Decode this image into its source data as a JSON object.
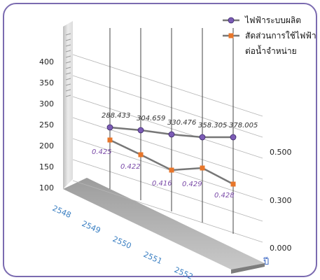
{
  "chart_data": {
    "type": "line",
    "categories": [
      "2548",
      "2549",
      "2550",
      "2551",
      "2552"
    ],
    "x_unit_label": "ปี",
    "left_ticks": [
      "100",
      "150",
      "200",
      "250",
      "300",
      "350",
      "400"
    ],
    "right_ticks": [
      "0.000",
      "0.300",
      "0.500"
    ],
    "series": [
      {
        "name": "ไฟฟ้าระบบผลิต",
        "values": [
          288.433,
          304.659,
          330.476,
          358.305,
          378.005
        ],
        "labels": [
          "288.433",
          "304.659",
          "330.476",
          "358.305",
          "378.005"
        ],
        "color": "#7b5bb5",
        "marker": "circle"
      },
      {
        "name": "สัดส่วนการใช้ไฟฟ้าต่อน้ำจำหน่าย",
        "name_lines": [
          "สัดส่วนการใช้ไฟฟ้า",
          "ต่อน้ำจำหน่าย"
        ],
        "values": [
          0.425,
          0.422,
          0.416,
          0.429,
          0.428
        ],
        "labels": [
          "0.425",
          "0.422",
          "0.416",
          "0.429",
          "0.428"
        ],
        "color": "#e8762a",
        "marker": "square"
      }
    ],
    "colors": {
      "frame": "#7b6bb0",
      "line": "#8a8a8a",
      "wall": "#d9d9d9",
      "floor": "#a8a8a8",
      "category_text": "#3a7fc2"
    }
  }
}
